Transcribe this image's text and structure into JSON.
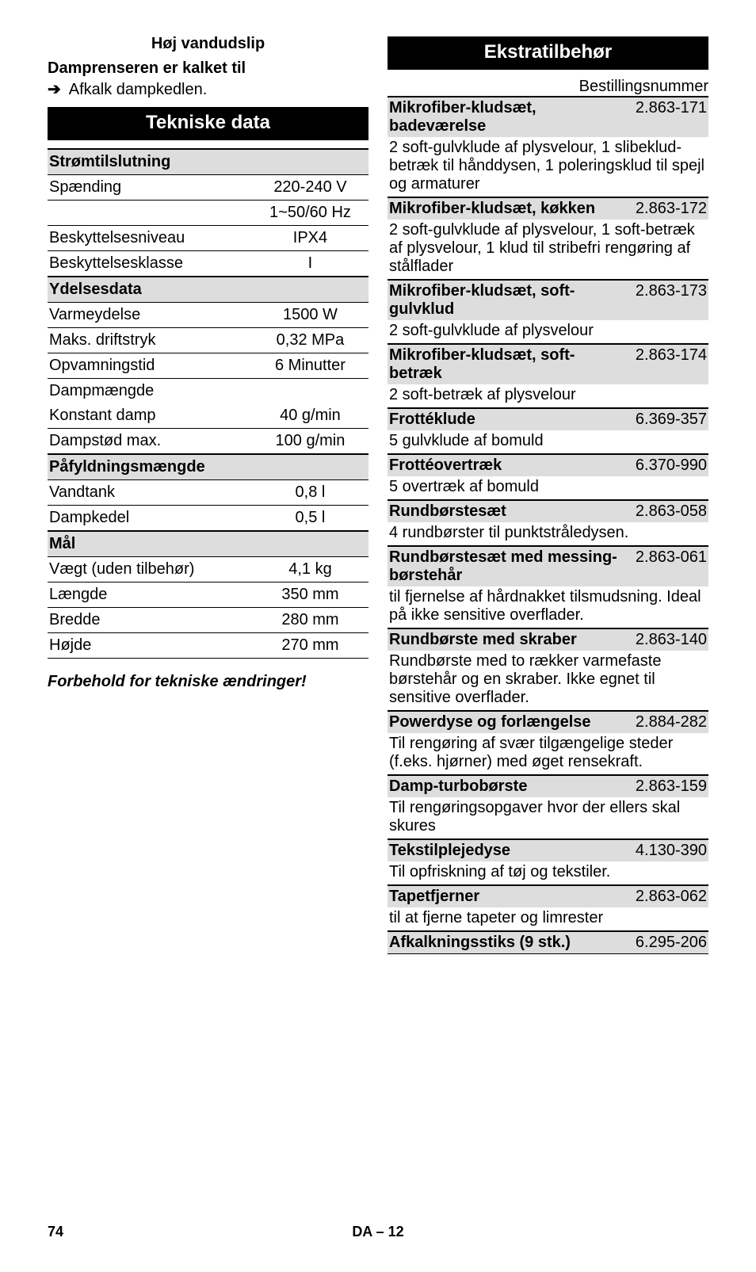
{
  "left": {
    "heading1": "Høj vandudslip",
    "sub1": "Damprenseren er kalket til",
    "bullet1": "Afkalk dampkedlen.",
    "banner": "Tekniske data",
    "groups": [
      {
        "title": "Strømtilslutning",
        "rows": [
          {
            "label": "Spænding",
            "val": "220-240 V"
          },
          {
            "label": "",
            "val": "1~50/60 Hz"
          },
          {
            "label": "Beskyttelsesniveau",
            "val": "IPX4"
          },
          {
            "label": "Beskyttelsesklasse",
            "val": "I"
          }
        ]
      },
      {
        "title": "Ydelsesdata",
        "rows": [
          {
            "label": "Varmeydelse",
            "val": "1500 W"
          },
          {
            "label": "Maks. driftstryk",
            "val": "0,32 MPa"
          },
          {
            "label": "Opvamningstid",
            "val": "6 Minutter"
          },
          {
            "label": "Dampmængde",
            "val": ""
          },
          {
            "label": "Konstant damp",
            "val": "40 g/min"
          },
          {
            "label": "Dampstød max.",
            "val": "100 g/min"
          }
        ]
      },
      {
        "title": "Påfyldningsmængde",
        "rows": [
          {
            "label": "Vandtank",
            "val": "0,8 l"
          },
          {
            "label": "Dampkedel",
            "val": "0,5 l"
          }
        ]
      },
      {
        "title": "Mål",
        "rows": [
          {
            "label": "Vægt (uden tilbehør)",
            "val": "4,1 kg"
          },
          {
            "label": "Længde",
            "val": "350 mm"
          },
          {
            "label": "Bredde",
            "val": "280 mm"
          },
          {
            "label": "Højde",
            "val": "270 mm"
          }
        ]
      }
    ],
    "note": "Forbehold for tekniske ændringer!"
  },
  "right": {
    "banner": "Ekstratilbehør",
    "order_label": "Bestillingsnummer",
    "items": [
      {
        "name": "Mikrofiber-kludsæt, badeværelse",
        "num": "2.863-171",
        "desc": "2 soft-gulvklude af plysvelour, 1 slibeklud-betræk til hånddysen, 1 poleringsklud til spejl og armaturer"
      },
      {
        "name": "Mikrofiber-kludsæt, køkken",
        "num": "2.863-172",
        "desc": "2 soft-gulvklude af plysvelour, 1 soft-betræk af plysvelour, 1 klud til stribefri rengøring af stålflader"
      },
      {
        "name": "Mikrofiber-kludsæt, soft-gulvklud",
        "num": "2.863-173",
        "desc": "2 soft-gulvklude af plysvelour"
      },
      {
        "name": "Mikrofiber-kludsæt, soft-betræk",
        "num": "2.863-174",
        "desc": "2 soft-betræk af plysvelour"
      },
      {
        "name": "Frottéklude",
        "num": "6.369-357",
        "desc": "5 gulvklude af bomuld"
      },
      {
        "name": "Frottéovertræk",
        "num": "6.370-990",
        "desc": "5 overtræk af bomuld"
      },
      {
        "name": "Rundbørstesæt",
        "num": "2.863-058",
        "desc": "4 rundbørster til punktstråledysen."
      },
      {
        "name": "Rundbørstesæt med messing-børstehår",
        "num": "2.863-061",
        "desc": "til fjernelse af hårdnakket tilsmudsning. Ideal på ikke sensitive overflader."
      },
      {
        "name": "Rundbørste med skraber",
        "num": "2.863-140",
        "desc": "Rundbørste med to rækker varmefaste børstehår og en skraber. Ikke egnet til sensitive overflader."
      },
      {
        "name": "Powerdyse og forlængelse",
        "num": "2.884-282",
        "desc": "Til rengøring af svær tilgængelige steder (f.eks. hjørner) med øget rensekraft."
      },
      {
        "name": "Damp-turbobørste",
        "num": "2.863-159",
        "desc": "Til rengøringsopgaver hvor der ellers skal skures"
      },
      {
        "name": "Tekstilplejedyse",
        "num": "4.130-390",
        "desc": "Til opfriskning af tøj og tekstiler."
      },
      {
        "name": "Tapetfjerner",
        "num": "2.863-062",
        "desc": "til at fjerne tapeter og limrester"
      },
      {
        "name": "Afkalkningsstiks (9 stk.)",
        "num": "6.295-206",
        "desc": ""
      }
    ]
  },
  "footer": {
    "page": "74",
    "mid": "DA – 12"
  }
}
